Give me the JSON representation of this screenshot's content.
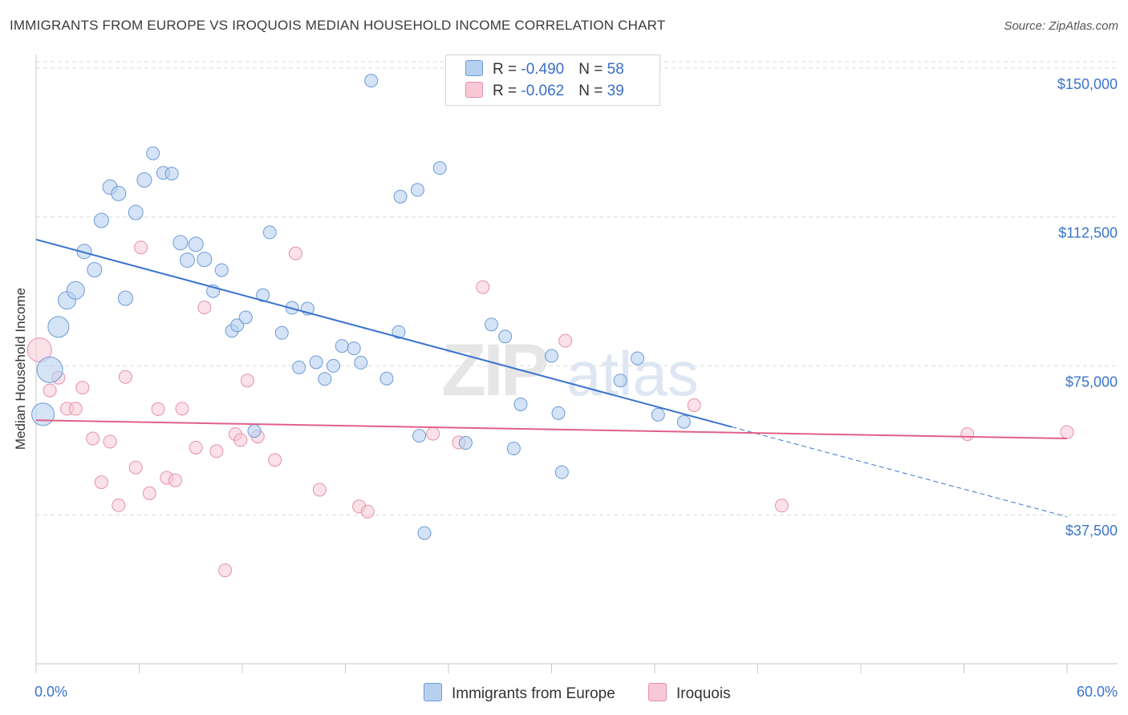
{
  "header": {
    "title": "IMMIGRANTS FROM EUROPE VS IROQUOIS MEDIAN HOUSEHOLD INCOME CORRELATION CHART",
    "source": "Source: ZipAtlas.com"
  },
  "legend_stats": {
    "series1": {
      "r_label": "R = ",
      "r_value": "-0.490",
      "n_label": "N = ",
      "n_value": "58"
    },
    "series2": {
      "r_label": "R = ",
      "r_value": "-0.062",
      "n_label": "N = ",
      "n_value": "39"
    }
  },
  "colors": {
    "europe_fill": "#b8d0f0",
    "europe_stroke": "#6d9bd6",
    "europe_line": "#3a74cc",
    "iroquois_fill": "#f8c8d6",
    "iroquois_stroke": "#e690ab",
    "iroquois_line": "#e0608a",
    "tick_label": "#3a74cc",
    "grid": "#d9d9d9"
  },
  "chart_data": {
    "type": "scatter",
    "xlabel": "",
    "ylabel": "Median Household Income",
    "xlim": [
      0,
      60
    ],
    "ylim": [
      0,
      155000
    ],
    "x_tick_labels": [
      "0.0%",
      "60.0%"
    ],
    "y_ticks": [
      {
        "value": 37500,
        "label": "$37,500"
      },
      {
        "value": 75000,
        "label": "$75,000"
      },
      {
        "value": 112500,
        "label": "$112,500"
      },
      {
        "value": 150000,
        "label": "$150,000"
      }
    ],
    "grid": "horizontal dashed",
    "legend_position": "bottom-center",
    "series": [
      {
        "name": "Immigrants from Europe",
        "trend": {
          "x1": 0,
          "y1": 106800,
          "x2": 40.5,
          "y2": 59600,
          "dash_to_x": 60,
          "dash_to_y": 37000
        },
        "points": [
          [
            0.4,
            62800,
            14
          ],
          [
            0.8,
            74000,
            16
          ],
          [
            1.3,
            84800,
            13
          ],
          [
            1.8,
            91500,
            11
          ],
          [
            2.3,
            94000,
            11
          ],
          [
            2.8,
            103800,
            9
          ],
          [
            3.4,
            99200,
            9
          ],
          [
            3.8,
            111600,
            9
          ],
          [
            4.3,
            120000,
            9
          ],
          [
            4.8,
            118400,
            9
          ],
          [
            5.2,
            92000,
            9
          ],
          [
            5.8,
            113600,
            9
          ],
          [
            6.3,
            121800,
            9
          ],
          [
            6.8,
            128500,
            8
          ],
          [
            7.4,
            123600,
            8
          ],
          [
            7.9,
            123400,
            8
          ],
          [
            8.4,
            106000,
            9
          ],
          [
            8.8,
            101600,
            9
          ],
          [
            9.3,
            105600,
            9
          ],
          [
            9.8,
            101800,
            9
          ],
          [
            10.3,
            93800,
            8
          ],
          [
            10.8,
            99100,
            8
          ],
          [
            11.4,
            83800,
            8
          ],
          [
            11.7,
            85200,
            8
          ],
          [
            12.2,
            87200,
            8
          ],
          [
            12.7,
            58600,
            8
          ],
          [
            13.2,
            92800,
            8
          ],
          [
            13.6,
            108600,
            8
          ],
          [
            14.3,
            83300,
            8
          ],
          [
            14.9,
            89600,
            8
          ],
          [
            15.3,
            74600,
            8
          ],
          [
            15.8,
            89400,
            8
          ],
          [
            16.3,
            75900,
            8
          ],
          [
            16.8,
            71700,
            8
          ],
          [
            17.3,
            75000,
            8
          ],
          [
            17.8,
            80000,
            8
          ],
          [
            18.5,
            79400,
            8
          ],
          [
            18.9,
            75800,
            8
          ],
          [
            19.5,
            146800,
            8
          ],
          [
            20.4,
            71800,
            8
          ],
          [
            21.1,
            83500,
            8
          ],
          [
            21.2,
            117600,
            8
          ],
          [
            22.2,
            119300,
            8
          ],
          [
            22.3,
            57400,
            8
          ],
          [
            22.6,
            32900,
            8
          ],
          [
            23.5,
            124800,
            8
          ],
          [
            25.0,
            55600,
            8
          ],
          [
            26.5,
            85400,
            8
          ],
          [
            27.3,
            82400,
            8
          ],
          [
            27.8,
            54200,
            8
          ],
          [
            28.2,
            65300,
            8
          ],
          [
            30.0,
            77500,
            8
          ],
          [
            30.4,
            63100,
            8
          ],
          [
            30.6,
            48200,
            8
          ],
          [
            34.0,
            71300,
            8
          ],
          [
            35.0,
            76900,
            8
          ],
          [
            36.2,
            62700,
            8
          ],
          [
            37.7,
            60900,
            8
          ]
        ]
      },
      {
        "name": "Iroquois",
        "trend": {
          "x1": 0,
          "y1": 61300,
          "x2": 60,
          "y2": 56700
        },
        "points": [
          [
            0.2,
            79000,
            15
          ],
          [
            0.8,
            68800,
            8
          ],
          [
            1.3,
            72000,
            8
          ],
          [
            1.8,
            64200,
            8
          ],
          [
            2.3,
            64200,
            8
          ],
          [
            2.7,
            69500,
            8
          ],
          [
            3.3,
            56700,
            8
          ],
          [
            3.8,
            45700,
            8
          ],
          [
            4.3,
            55900,
            8
          ],
          [
            4.8,
            39900,
            8
          ],
          [
            5.2,
            72200,
            8
          ],
          [
            5.8,
            49400,
            8
          ],
          [
            6.1,
            104800,
            8
          ],
          [
            6.6,
            42900,
            8
          ],
          [
            7.1,
            64100,
            8
          ],
          [
            7.6,
            46800,
            8
          ],
          [
            8.1,
            46200,
            8
          ],
          [
            8.5,
            64200,
            8
          ],
          [
            9.3,
            54400,
            8
          ],
          [
            9.8,
            89700,
            8
          ],
          [
            10.5,
            53500,
            8
          ],
          [
            11.0,
            23500,
            8
          ],
          [
            11.6,
            57800,
            8
          ],
          [
            11.9,
            56300,
            8
          ],
          [
            12.3,
            71300,
            8
          ],
          [
            12.9,
            57200,
            8
          ],
          [
            13.9,
            51300,
            8
          ],
          [
            15.1,
            103300,
            8
          ],
          [
            16.5,
            43800,
            8
          ],
          [
            18.8,
            39600,
            8
          ],
          [
            19.3,
            38300,
            8
          ],
          [
            23.1,
            57900,
            8
          ],
          [
            24.6,
            55700,
            8
          ],
          [
            26.0,
            94800,
            8
          ],
          [
            30.8,
            81300,
            8
          ],
          [
            38.3,
            65100,
            8
          ],
          [
            43.4,
            39800,
            8
          ],
          [
            54.2,
            57800,
            8
          ],
          [
            60.0,
            58300,
            8
          ]
        ]
      }
    ]
  },
  "legend_bottom": {
    "europe_label": "Immigrants from Europe",
    "iroquois_label": "Iroquois"
  }
}
